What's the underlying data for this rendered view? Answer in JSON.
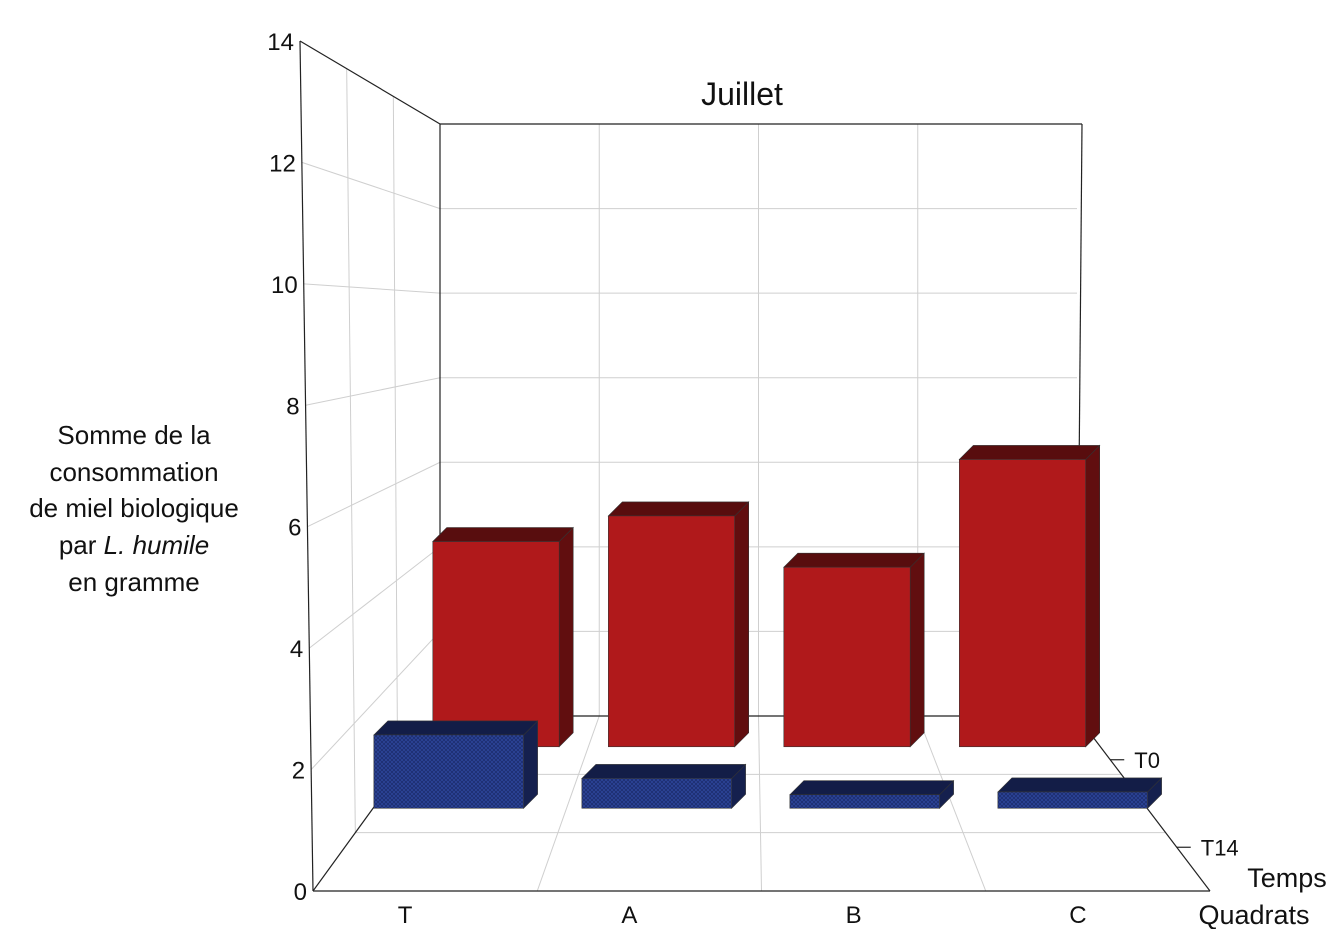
{
  "chart_data": {
    "type": "bar",
    "view": "3d",
    "title": "Juillet",
    "ylabel_lines": [
      "Somme de la",
      "consommation",
      "de miel biologique",
      "par ",
      "en gramme"
    ],
    "ylabel_italic": "L. humile",
    "xlabel": "Quadrats",
    "zlabel": "Temps",
    "categories": [
      "T",
      "A",
      "B",
      "C"
    ],
    "ylim": [
      0,
      14
    ],
    "yticks": [
      "0",
      "2",
      "4",
      "6",
      "8",
      "10",
      "12",
      "14"
    ],
    "grid": true,
    "series": [
      {
        "name": "T0",
        "values": [
          4.0,
          4.5,
          3.5,
          5.6
        ],
        "color": "#b0191b"
      },
      {
        "name": "T14",
        "values": [
          1.35,
          0.55,
          0.25,
          0.3
        ],
        "color": "#263a8e"
      }
    ]
  }
}
